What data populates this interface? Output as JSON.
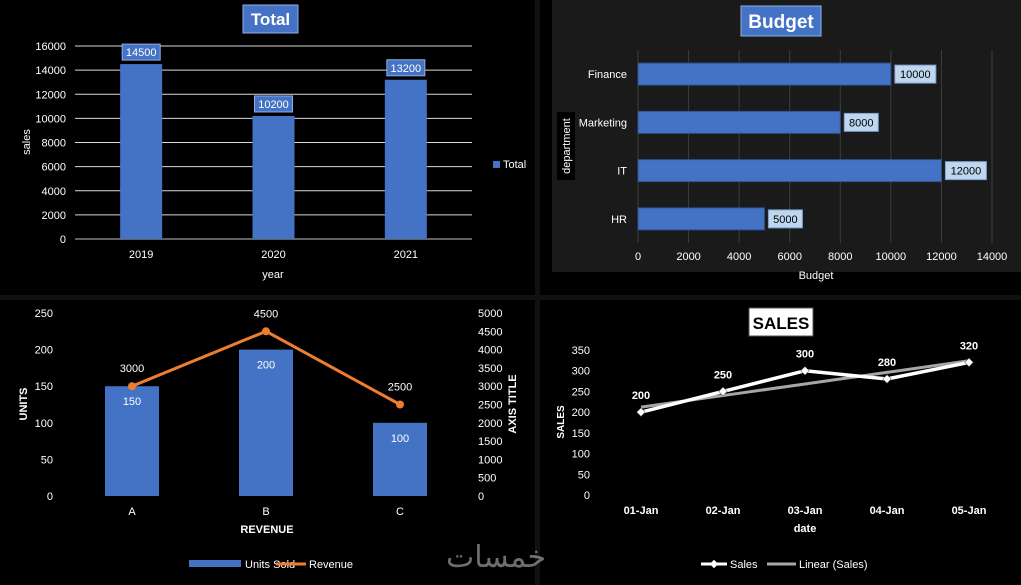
{
  "watermark": "خمسات",
  "chart_data": [
    {
      "id": "total",
      "type": "bar",
      "title": "Total",
      "xlabel": "year",
      "ylabel": "sales",
      "categories": [
        "2019",
        "2020",
        "2021"
      ],
      "values": [
        14500,
        10200,
        13200
      ],
      "data_labels": [
        "14500",
        "10200",
        "13200"
      ],
      "ylim": [
        0,
        16000
      ],
      "yticks": [
        "0",
        "2000",
        "4000",
        "6000",
        "8000",
        "10000",
        "12000",
        "14000",
        "16000"
      ],
      "legend": [
        "Total"
      ],
      "legend_position": "right",
      "colors": {
        "bar": "#4472C4",
        "background": "#000000",
        "text": "#FFFFFF",
        "title_bg": "#4472C4"
      }
    },
    {
      "id": "budget",
      "type": "bar",
      "orientation": "horizontal",
      "title": "Budget",
      "xlabel": "Budget",
      "ylabel": "department",
      "categories": [
        "Finance",
        "Marketing",
        "IT",
        "HR"
      ],
      "values": [
        10000,
        8000,
        12000,
        5000
      ],
      "data_labels": [
        "10000",
        "8000",
        "12000",
        "5000"
      ],
      "xlim": [
        0,
        14000
      ],
      "xticks": [
        "0",
        "2000",
        "4000",
        "6000",
        "8000",
        "10000",
        "12000",
        "14000"
      ],
      "colors": {
        "bar": "#4472C4",
        "background": "#1A1A1A",
        "text": "#FFFFFF",
        "title_bg": "#4472C4",
        "label_bg": "#BDD7EE"
      }
    },
    {
      "id": "units-revenue",
      "type": "bar",
      "combo": "bar-line",
      "title": "",
      "xlabel": "REVENUE",
      "ylabel": "UNITS",
      "y2label": "AXIS TITLE",
      "categories": [
        "A",
        "B",
        "C"
      ],
      "series": [
        {
          "name": "Units Sold",
          "type": "bar",
          "axis": "left",
          "values": [
            150,
            200,
            100
          ],
          "data_labels": [
            "150",
            "200",
            "100"
          ]
        },
        {
          "name": "Revenue",
          "type": "line",
          "axis": "right",
          "values": [
            3000,
            4500,
            2500
          ],
          "data_labels": [
            "3000",
            "4500",
            "2500"
          ]
        }
      ],
      "ylim": [
        0,
        250
      ],
      "yticks": [
        "0",
        "50",
        "100",
        "150",
        "200",
        "250"
      ],
      "y2lim": [
        0,
        5000
      ],
      "y2ticks": [
        "0",
        "500",
        "1000",
        "1500",
        "2000",
        "2500",
        "3000",
        "3500",
        "4000",
        "4500",
        "5000"
      ],
      "legend_position": "bottom",
      "colors": {
        "bar": "#4472C4",
        "line": "#ED7D31",
        "background": "#000000",
        "text": "#FFFFFF"
      }
    },
    {
      "id": "sales",
      "type": "line",
      "title": "SALES",
      "xlabel": "date",
      "ylabel": "SALES",
      "categories": [
        "01-Jan",
        "02-Jan",
        "03-Jan",
        "04-Jan",
        "05-Jan"
      ],
      "series": [
        {
          "name": "Sales",
          "values": [
            200,
            250,
            300,
            280,
            320
          ],
          "data_labels": [
            "200",
            "250",
            "300",
            "280",
            "320"
          ]
        },
        {
          "name": "Linear (Sales)",
          "trendline": "linear",
          "values": [
            212,
            240,
            268,
            296,
            324
          ]
        }
      ],
      "ylim": [
        0,
        350
      ],
      "yticks": [
        "0",
        "50",
        "100",
        "150",
        "200",
        "250",
        "300",
        "350"
      ],
      "legend_position": "bottom",
      "colors": {
        "line": "#FFFFFF",
        "trend": "#A6A6A6",
        "background": "#000000",
        "text": "#FFFFFF",
        "title_bg": "#FFFFFF",
        "title_text": "#000000"
      }
    }
  ]
}
